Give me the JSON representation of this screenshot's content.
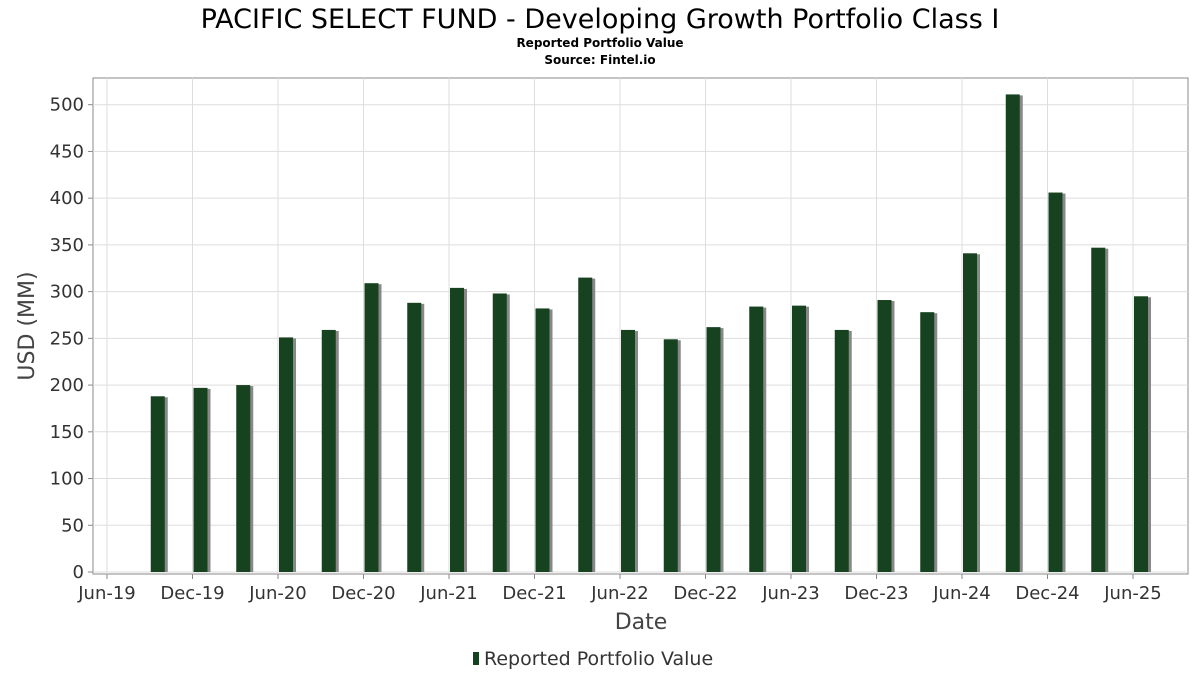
{
  "chart_data": {
    "type": "bar",
    "title": "PACIFIC SELECT FUND - Developing Growth Portfolio Class I",
    "subtitle": "Reported Portfolio Value",
    "source": "Source: Fintel.io",
    "xlabel": "Date",
    "ylabel": "USD (MM)",
    "ylim": [
      0,
      530
    ],
    "yticks": [
      0,
      50,
      100,
      150,
      200,
      250,
      300,
      350,
      400,
      450,
      500
    ],
    "xlim": [
      0,
      72.5
    ],
    "xticks": [
      {
        "label": "Jun-19",
        "pos": 0
      },
      {
        "label": "Dec-19",
        "pos": 6
      },
      {
        "label": "Jun-20",
        "pos": 12
      },
      {
        "label": "Dec-20",
        "pos": 18
      },
      {
        "label": "Jun-21",
        "pos": 24
      },
      {
        "label": "Dec-21",
        "pos": 30
      },
      {
        "label": "Jun-22",
        "pos": 36
      },
      {
        "label": "Dec-22",
        "pos": 42
      },
      {
        "label": "Jun-23",
        "pos": 48
      },
      {
        "label": "Dec-23",
        "pos": 54
      },
      {
        "label": "Jun-24",
        "pos": 60
      },
      {
        "label": "Dec-24",
        "pos": 66
      },
      {
        "label": "Jun-25",
        "pos": 72
      }
    ],
    "grid": true,
    "legend_position": "bottom",
    "series": [
      {
        "name": "Reported Portfolio Value",
        "color": "#17421f",
        "shadow_color": "#888888",
        "x": [
          4,
          7,
          10,
          13,
          16,
          19,
          22,
          25,
          28,
          31,
          34,
          37,
          40,
          43,
          46,
          49,
          52,
          55,
          58,
          61,
          64,
          67,
          70,
          73
        ],
        "values": [
          188,
          197,
          200,
          251,
          259,
          309,
          288,
          304,
          298,
          282,
          315,
          259,
          249,
          262,
          284,
          285,
          259,
          291,
          278,
          341,
          511,
          406,
          347,
          295
        ]
      }
    ]
  }
}
